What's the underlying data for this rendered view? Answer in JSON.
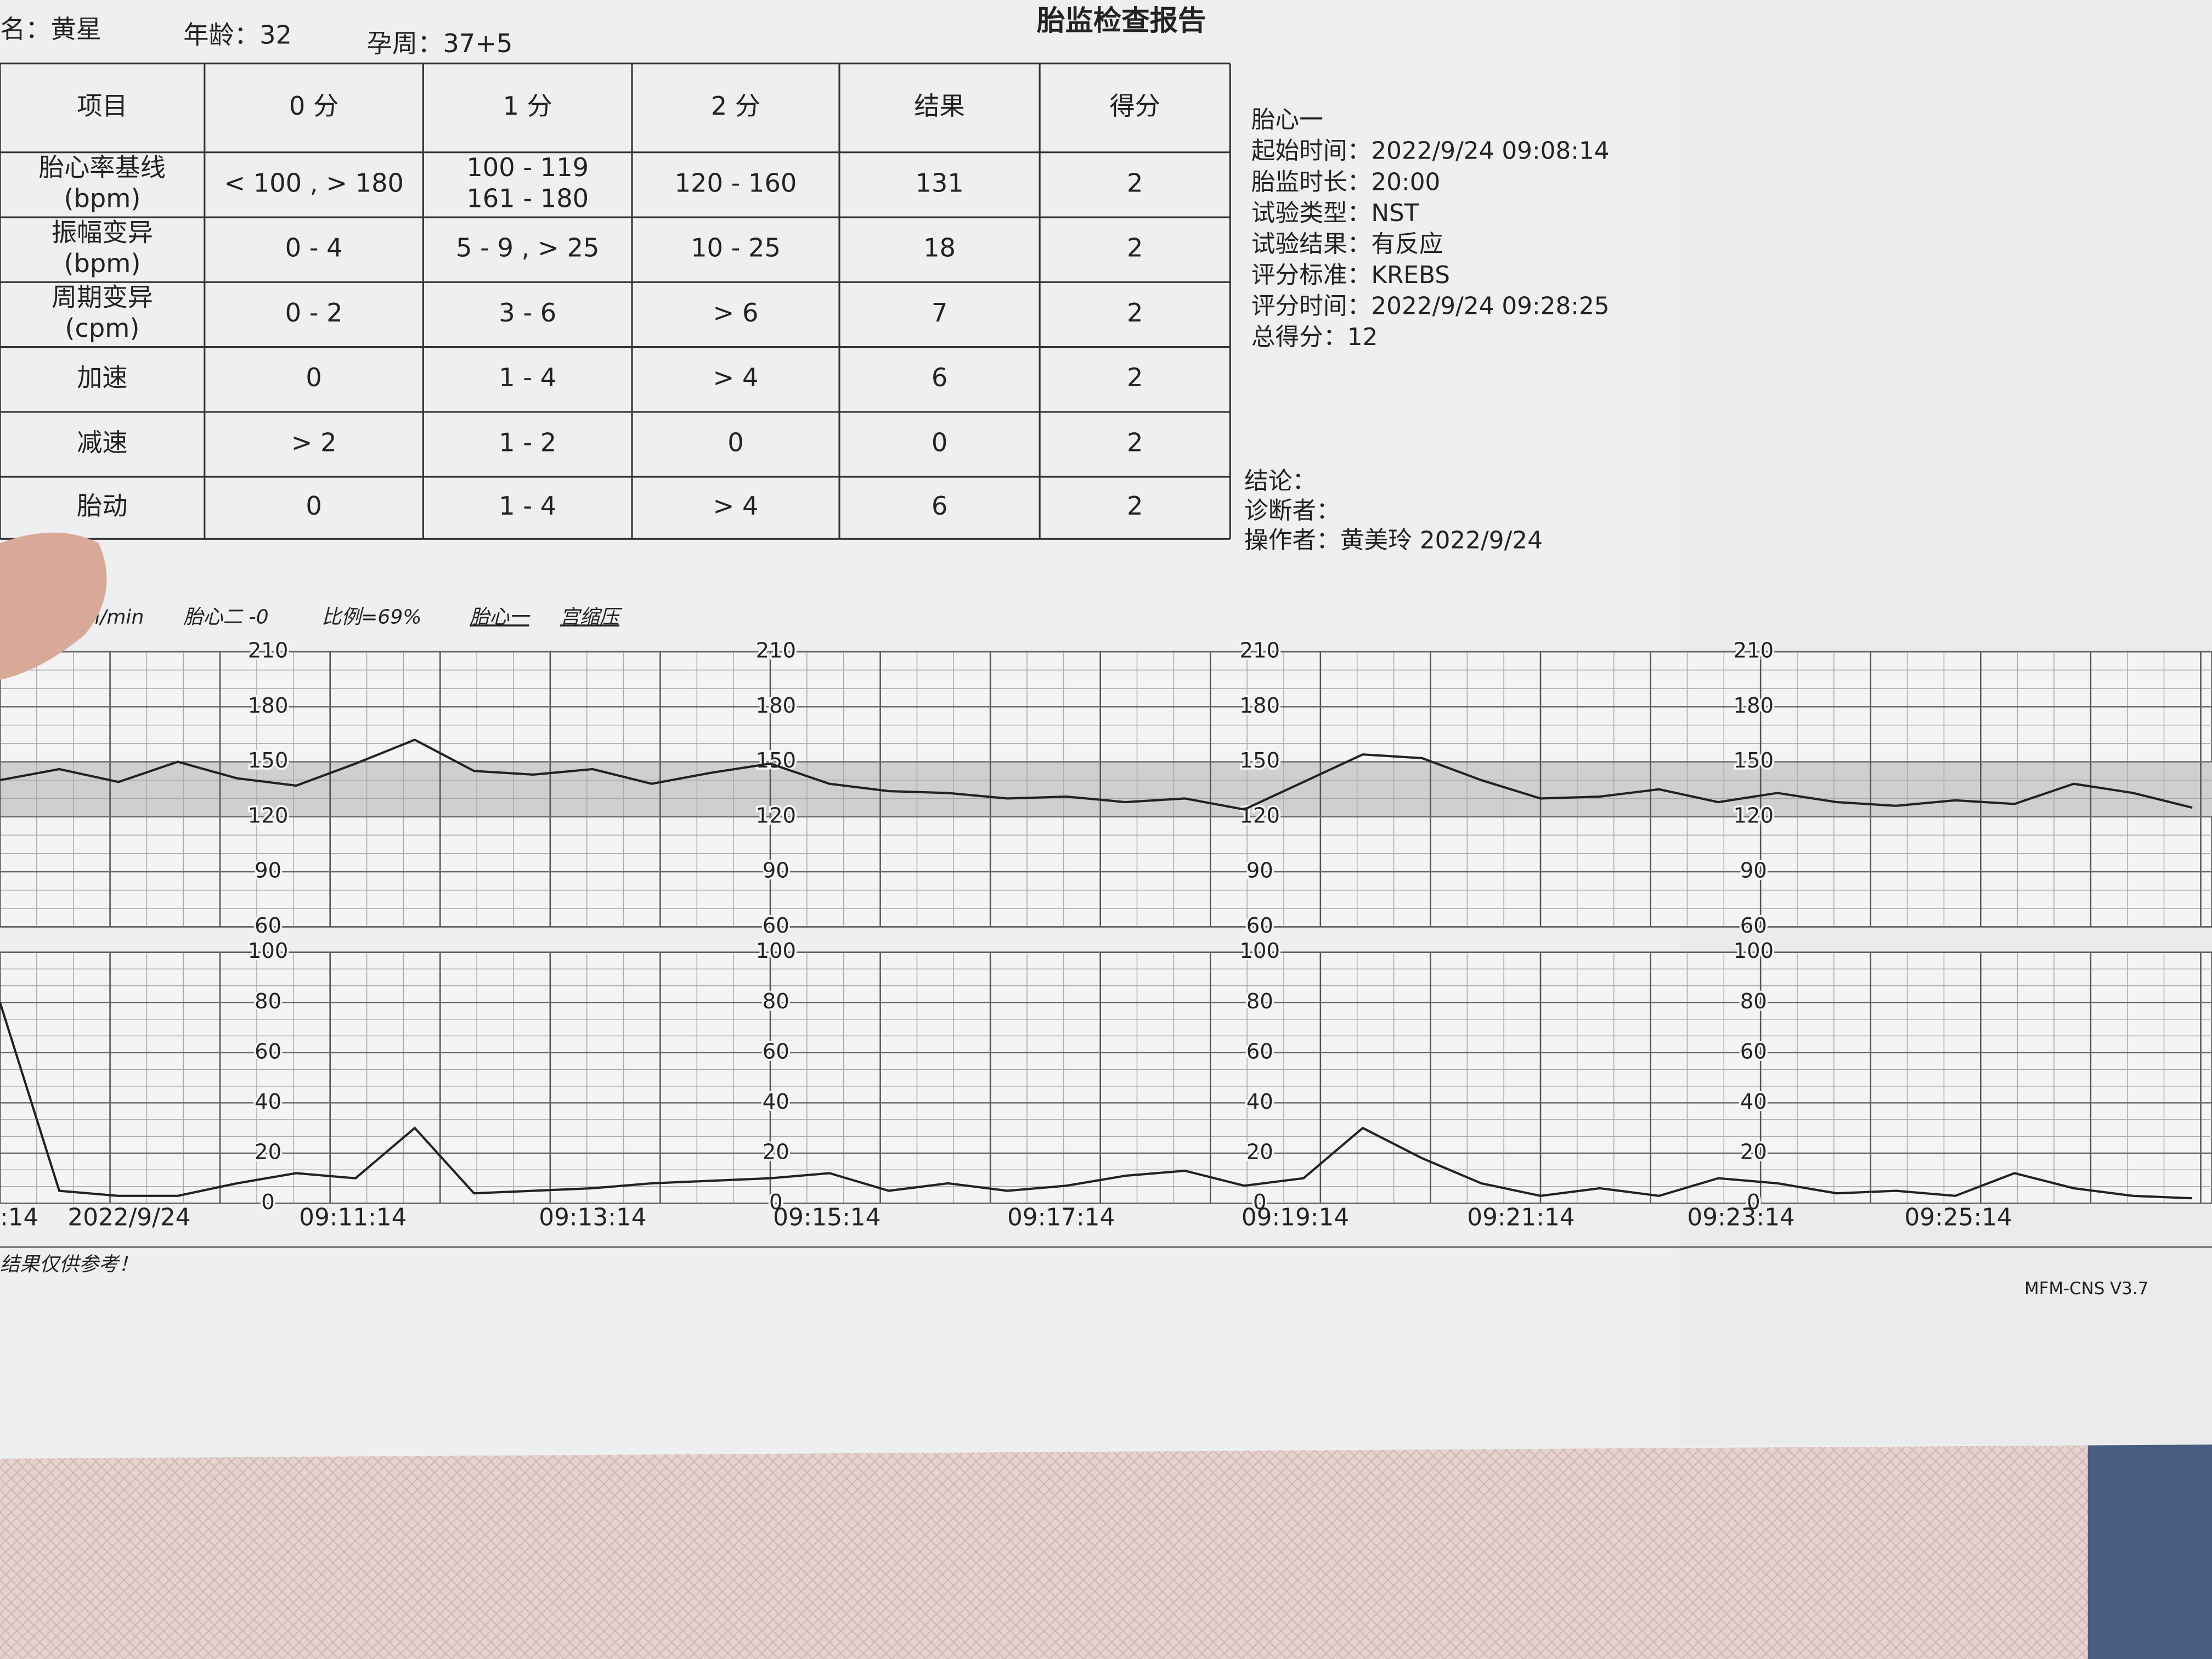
{
  "header": {
    "name": "名：黄星",
    "age": "年龄：32",
    "gestation": "孕周：37+5",
    "title": "胎监检查报告"
  },
  "table": {
    "header": [
      "项目",
      "0 分",
      "1 分",
      "2 分",
      "结果",
      "得分"
    ],
    "rows": [
      [
        [
          "胎心率基线",
          "(bpm)"
        ],
        "< 100 , > 180",
        [
          "100 - 119",
          "161 - 180"
        ],
        "120 - 160",
        "131",
        "2"
      ],
      [
        [
          "振幅变异",
          "(bpm)"
        ],
        "0 - 4",
        "5 - 9 , > 25",
        "10 - 25",
        "18",
        "2"
      ],
      [
        [
          "周期变异",
          "(cpm)"
        ],
        "0 - 2",
        "3 - 6",
        "> 6",
        "7",
        "2"
      ],
      [
        "加速",
        "0",
        "1 - 4",
        "> 4",
        "6",
        "2"
      ],
      [
        "减速",
        "> 2",
        "1 - 2",
        "0",
        "0",
        "2"
      ],
      [
        "胎动",
        "0",
        "1 - 4",
        "> 4",
        "6",
        "2"
      ]
    ]
  },
  "info": [
    "胎心一",
    "起始时间：2022/9/24 09:08:14",
    "胎监时长：20:00",
    "试验类型：NST",
    "试验结果：有反应",
    "评分标准：KREBS",
    "评分时间：2022/9/24 09:28:25",
    "总得分：12"
  ],
  "conclusion": [
    "结论：",
    "诊断者：",
    "操作者：黄美玲  2022/9/24"
  ],
  "strip_legend": [
    "n/min",
    "胎心二 -0",
    "比例=69%",
    "胎心一",
    "宫缩压"
  ],
  "trace": {
    "fhr": {
      "ylim": [
        60,
        210
      ],
      "yticks": [
        210,
        180,
        150,
        120,
        90,
        60
      ],
      "values": [
        140,
        146,
        139,
        150,
        141,
        137,
        149,
        162,
        145,
        143,
        146,
        138,
        144,
        149,
        138,
        134,
        133,
        130,
        131,
        128,
        130,
        124,
        139,
        154,
        152,
        140,
        130,
        131,
        135,
        128,
        133,
        128,
        126,
        129,
        127,
        138,
        133,
        125
      ]
    },
    "toco": {
      "ylim": [
        0,
        100
      ],
      "yticks": [
        100,
        80,
        60,
        40,
        20,
        0
      ],
      "values": [
        80,
        5,
        3,
        3,
        8,
        12,
        10,
        30,
        4,
        5,
        6,
        8,
        9,
        10,
        12,
        5,
        8,
        5,
        7,
        11,
        13,
        7,
        10,
        30,
        18,
        8,
        3,
        6,
        3,
        10,
        8,
        4,
        5,
        3,
        12,
        6,
        3,
        2
      ]
    }
  },
  "time_labels": [
    ":14",
    "2022/9/24",
    "09:11:14",
    "09:13:14",
    "09:15:14",
    "09:17:14",
    "09:19:14",
    "09:21:14",
    "09:23:14",
    "09:25:14"
  ],
  "footer": {
    "note": "结果仅供参考！",
    "version": "MFM-CNS V3.7"
  }
}
